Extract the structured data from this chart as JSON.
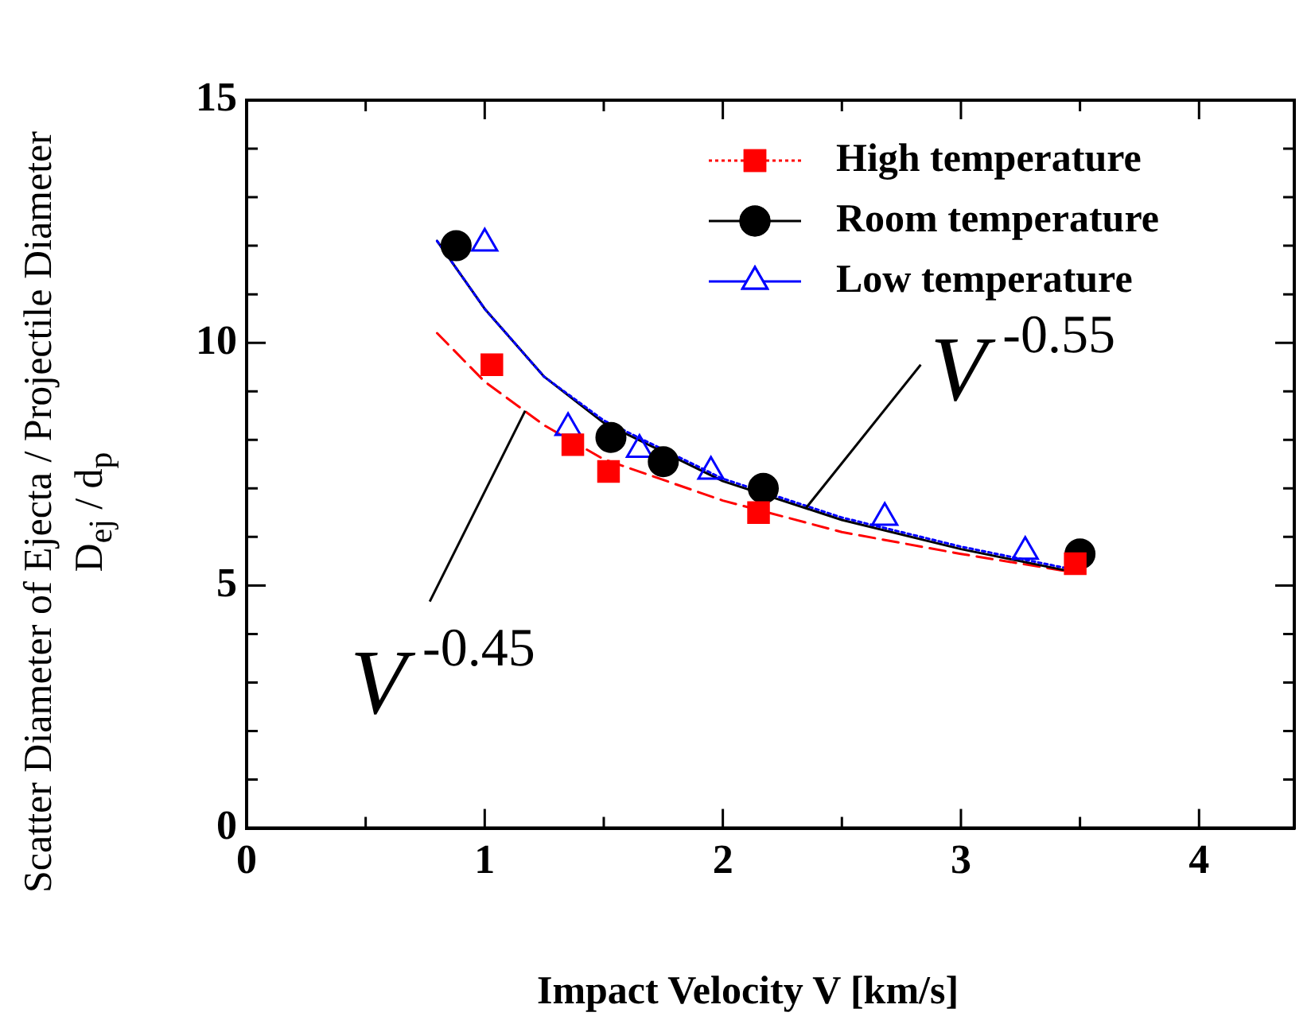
{
  "chart_data": {
    "type": "scatter",
    "xlabel": "Impact Velocity V [km/s]",
    "ylabel": "Scatter Diameter of Ejecta / Projectile Diameter\nD$_{ej}$ / d$_{p}$",
    "xlim": [
      0,
      4.4
    ],
    "xticks": [
      0,
      {
        "value": 0.5,
        "label": null
      },
      1,
      {
        "value": 1.5,
        "label": null
      },
      2,
      {
        "value": 2.5,
        "label": null
      },
      3,
      {
        "value": 3.5,
        "label": null
      },
      4
    ],
    "ylim": [
      0,
      15
    ],
    "yticks": [
      0,
      {
        "value": 1,
        "label": null
      },
      {
        "value": 2,
        "label": null
      },
      {
        "value": 3,
        "label": null
      },
      {
        "value": 4,
        "label": null
      },
      5,
      {
        "value": 6,
        "label": null
      },
      {
        "value": 7,
        "label": null
      },
      {
        "value": 8,
        "label": null
      },
      {
        "value": 9,
        "label": null
      },
      10,
      {
        "value": 11,
        "label": null
      },
      {
        "value": 12,
        "label": null
      },
      {
        "value": 13,
        "label": null
      },
      {
        "value": 14,
        "label": null
      },
      15
    ],
    "grid": false,
    "legend": "top right",
    "series": [
      {
        "type": "line",
        "color": "#ff0000",
        "marker": "none",
        "line_style": "dashed",
        "x": [
          0.8,
          1.0,
          1.25,
          1.5,
          2.0,
          2.5,
          3.0,
          3.5
        ],
        "values": [
          10.2,
          9.2,
          8.3,
          7.6,
          6.75,
          6.1,
          5.65,
          5.25
        ]
      },
      {
        "type": "line",
        "color": "#000000",
        "marker": "none",
        "line_style": "solid",
        "x": [
          0.8,
          1.0,
          1.25,
          1.5,
          2.0,
          2.5,
          3.0,
          3.5
        ],
        "values": [
          12.1,
          10.7,
          9.3,
          8.35,
          7.15,
          6.35,
          5.75,
          5.25
        ]
      },
      {
        "type": "line",
        "color": "#0000ff",
        "marker": "none",
        "line_style": "dotted",
        "x": [
          0.8,
          1.0,
          1.25,
          1.5,
          2.0,
          2.5,
          3.0,
          3.5
        ],
        "values": [
          12.1,
          10.7,
          9.3,
          8.4,
          7.2,
          6.4,
          5.8,
          5.3
        ]
      },
      {
        "name": "High temperature",
        "color": "#ff0000",
        "marker": "square",
        "line_style": "dotted",
        "x": [
          1.03,
          1.37,
          1.52,
          2.15,
          3.48
        ],
        "values": [
          9.55,
          7.9,
          7.35,
          6.5,
          5.45
        ]
      },
      {
        "name": "Room temperature",
        "color": "#000000",
        "marker": "circle",
        "line_style": "solid",
        "x": [
          0.88,
          1.53,
          1.75,
          2.17,
          3.5
        ],
        "values": [
          12.0,
          8.05,
          7.55,
          7.0,
          5.65
        ]
      },
      {
        "name": "Low temperature",
        "color": "#0000ff",
        "marker": "triangle",
        "line_style": "solid",
        "x": [
          1.0,
          1.35,
          1.65,
          1.95,
          2.68,
          3.27
        ],
        "values": [
          12.05,
          8.25,
          7.8,
          7.35,
          6.4,
          5.7
        ]
      }
    ],
    "annotations": [
      {
        "text": "V$^{-0.55}$",
        "x": 2.35,
        "y": 6.6
      },
      {
        "text": "V$^{-0.45}$",
        "x": 1.17,
        "y": 8.6
      }
    ]
  }
}
